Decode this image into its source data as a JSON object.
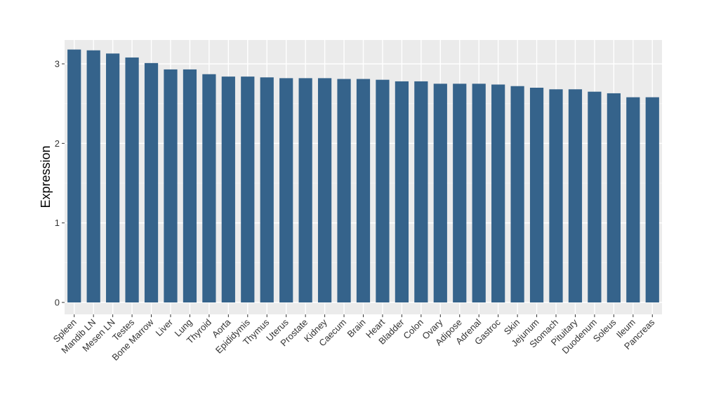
{
  "chart_data": {
    "type": "bar",
    "title": "",
    "xlabel": "",
    "ylabel": "Expression",
    "ylim": [
      0,
      3.3
    ],
    "yticks": [
      0,
      1,
      2,
      3
    ],
    "grid": true,
    "legend": "none",
    "colors": {
      "bar": "#35638b",
      "panel": "#ebebeb",
      "grid_major": "#ffffff",
      "grid_minor": "#f5f5f5"
    },
    "categories": [
      "Spleen",
      "Mandib LN",
      "Mesen LN",
      "Testes",
      "Bone Marrow",
      "Liver",
      "Lung",
      "Thyroid",
      "Aorta",
      "Epididymis",
      "Thymus",
      "Uterus",
      "Prostate",
      "Kidney",
      "Caecum",
      "Brain",
      "Heart",
      "Bladder",
      "Colon",
      "Ovary",
      "Adipose",
      "Adrenal",
      "Gastroc",
      "Skin",
      "Jejunum",
      "Stomach",
      "Pituitary",
      "Duodenum",
      "Soleus",
      "Ileum",
      "Pancreas"
    ],
    "values": [
      3.18,
      3.17,
      3.13,
      3.08,
      3.01,
      2.93,
      2.93,
      2.87,
      2.84,
      2.84,
      2.83,
      2.82,
      2.82,
      2.82,
      2.81,
      2.81,
      2.8,
      2.78,
      2.78,
      2.75,
      2.75,
      2.75,
      2.74,
      2.72,
      2.7,
      2.68,
      2.68,
      2.65,
      2.63,
      2.58,
      2.58
    ]
  }
}
